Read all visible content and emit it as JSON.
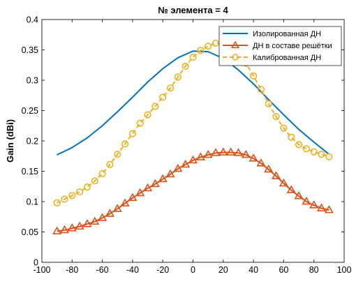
{
  "chart_data": {
    "type": "line",
    "title": "№ элемента = 4",
    "xlabel": "",
    "ylabel": "Gain (dBi)",
    "xlim": [
      -100,
      100
    ],
    "ylim": [
      0,
      0.4
    ],
    "xticks": [
      -100,
      -80,
      -60,
      -40,
      -20,
      0,
      20,
      40,
      60,
      80,
      100
    ],
    "yticks": [
      0,
      0.05,
      0.1,
      0.15,
      0.2,
      0.25,
      0.3,
      0.35,
      0.4
    ],
    "grid": false,
    "legend": "top-right",
    "series": [
      {
        "name": "Изолированная ДН",
        "color": "#0072BD",
        "marker": "none",
        "linestyle": "solid",
        "x": [
          -90,
          -80,
          -70,
          -60,
          -50,
          -40,
          -30,
          -20,
          -10,
          0,
          10,
          20,
          30,
          40,
          50,
          60,
          70,
          80,
          90
        ],
        "y": [
          0.177,
          0.189,
          0.205,
          0.225,
          0.248,
          0.272,
          0.297,
          0.319,
          0.337,
          0.348,
          0.347,
          0.336,
          0.317,
          0.294,
          0.268,
          0.243,
          0.219,
          0.198,
          0.178
        ]
      },
      {
        "name": "ДН в составе решётки",
        "color": "#D95319",
        "marker": "triangle",
        "linestyle": "solid",
        "x": [
          -90,
          -85,
          -80,
          -75,
          -70,
          -65,
          -60,
          -55,
          -50,
          -45,
          -40,
          -35,
          -30,
          -25,
          -20,
          -15,
          -10,
          -5,
          0,
          5,
          10,
          15,
          20,
          25,
          30,
          35,
          40,
          45,
          50,
          55,
          60,
          65,
          70,
          75,
          80,
          85,
          90
        ],
        "y": [
          0.051,
          0.053,
          0.056,
          0.059,
          0.063,
          0.067,
          0.073,
          0.08,
          0.088,
          0.097,
          0.106,
          0.114,
          0.122,
          0.129,
          0.137,
          0.145,
          0.154,
          0.161,
          0.168,
          0.173,
          0.177,
          0.18,
          0.181,
          0.181,
          0.18,
          0.177,
          0.171,
          0.163,
          0.153,
          0.142,
          0.13,
          0.119,
          0.109,
          0.1,
          0.094,
          0.089,
          0.086
        ]
      },
      {
        "name": "Калиброванная ДН",
        "color": "#EDB120",
        "marker": "circle",
        "linestyle": "dashed",
        "x": [
          -90,
          -85,
          -80,
          -75,
          -70,
          -65,
          -60,
          -55,
          -50,
          -45,
          -40,
          -35,
          -30,
          -25,
          -20,
          -15,
          -10,
          -5,
          0,
          5,
          10,
          15,
          20,
          25,
          30,
          35,
          40,
          45,
          50,
          55,
          60,
          65,
          70,
          75,
          80,
          85,
          90
        ],
        "y": [
          0.098,
          0.104,
          0.11,
          0.116,
          0.124,
          0.134,
          0.146,
          0.161,
          0.178,
          0.195,
          0.212,
          0.229,
          0.243,
          0.257,
          0.272,
          0.287,
          0.305,
          0.323,
          0.338,
          0.349,
          0.356,
          0.361,
          0.362,
          0.357,
          0.345,
          0.328,
          0.307,
          0.285,
          0.261,
          0.24,
          0.221,
          0.206,
          0.194,
          0.187,
          0.182,
          0.178,
          0.174
        ]
      }
    ]
  }
}
